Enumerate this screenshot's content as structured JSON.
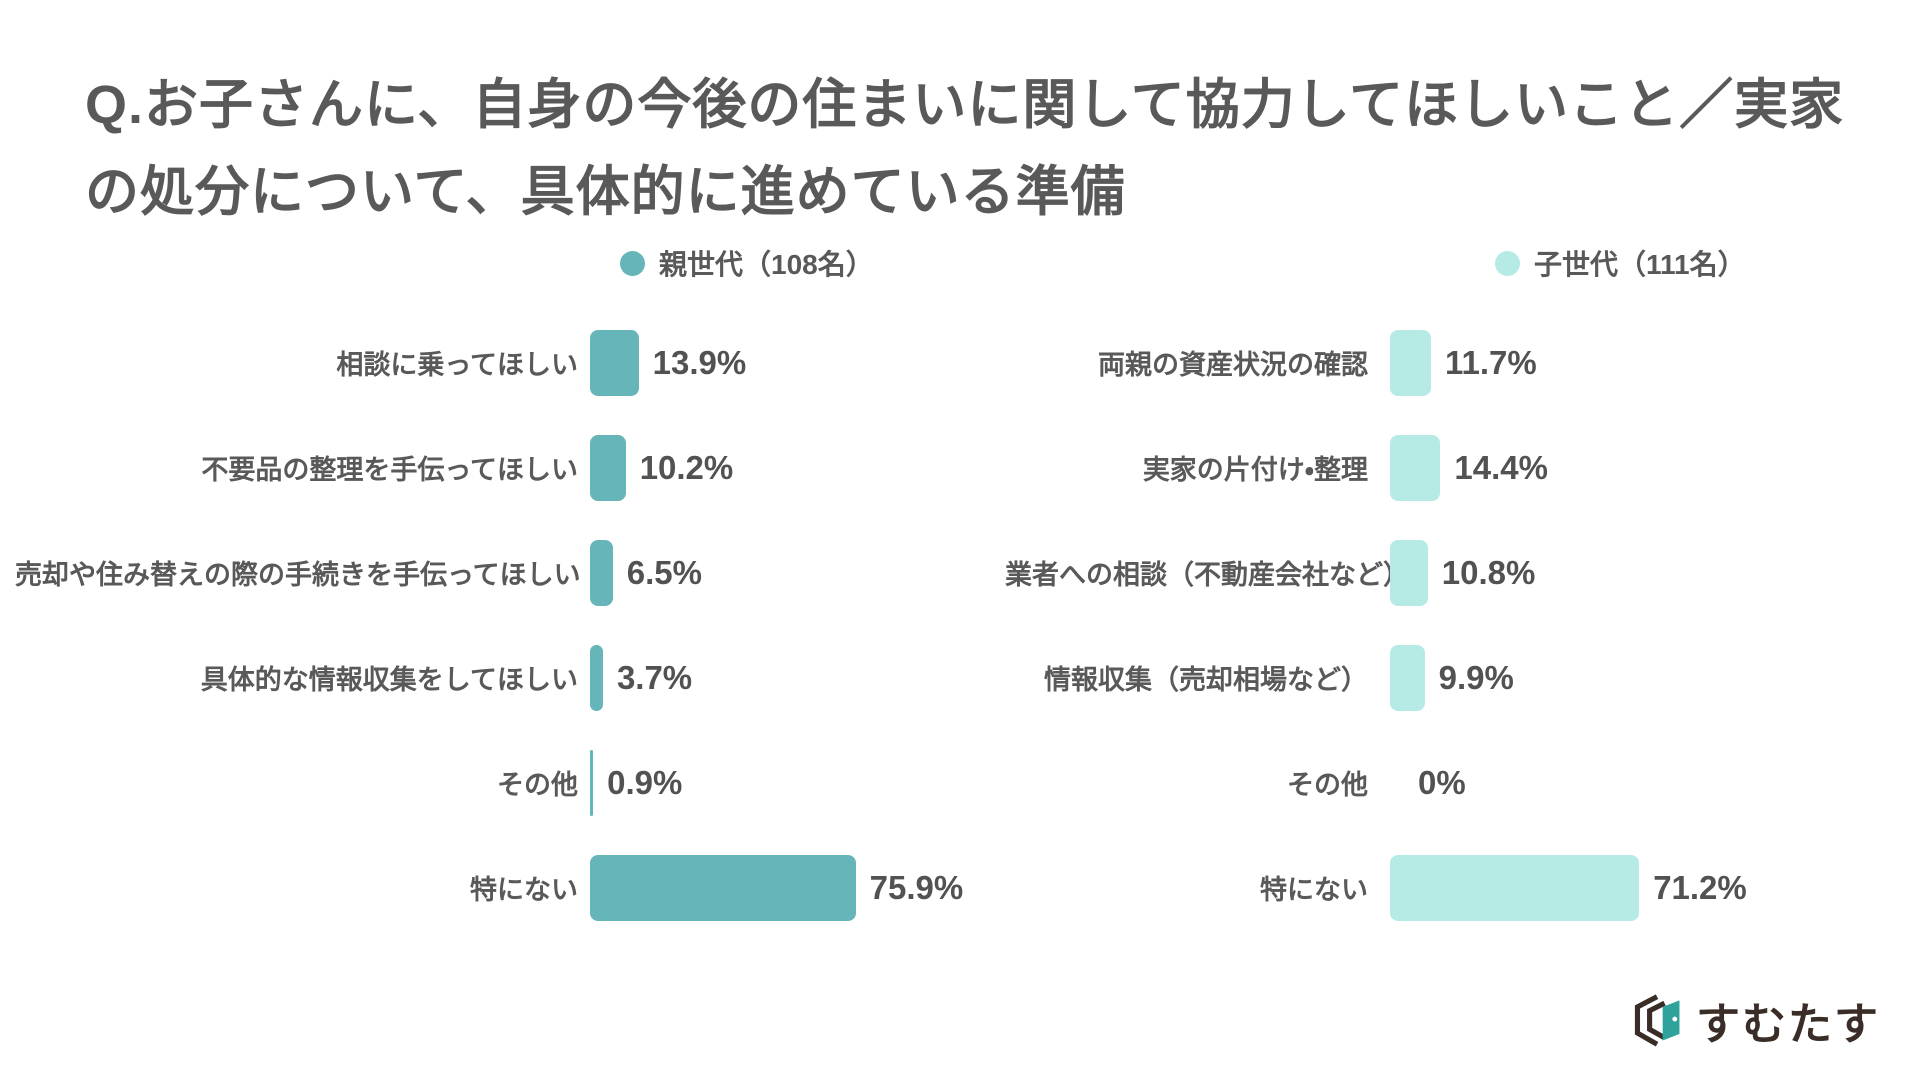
{
  "page": {
    "title_line1": "Q.お子さんに、自身の今後の住まいに関して協力してほしいこと／実家",
    "title_line2": "の処分について、具体的に進めている準備"
  },
  "colors": {
    "parent_series": "#66B5B8",
    "child_series": "#B5EBE4",
    "title_text": "#595959",
    "logo_dark": "#3A2D27",
    "logo_teal": "#2FA39B"
  },
  "logo": {
    "text": "すむたす"
  },
  "chart_data": [
    {
      "type": "bar",
      "orientation": "horizontal",
      "legend": "親世代（108名）",
      "unit": "%",
      "color_key": "parent_series",
      "axis_range": [
        0,
        80
      ],
      "grid": false,
      "categories": [
        "相談に乗ってほしい",
        "不要品の整理を手伝ってほしい",
        "売却や住み替えの際の手続きを手伝ってほしい",
        "具体的な情報収集をしてほしい",
        "その他",
        "特にない"
      ],
      "values": [
        13.9,
        10.2,
        6.5,
        3.7,
        0.9,
        75.9
      ],
      "value_labels": [
        "13.9%",
        "10.2%",
        "6.5%",
        "3.7%",
        "0.9%",
        "75.9%"
      ]
    },
    {
      "type": "bar",
      "orientation": "horizontal",
      "legend": "子世代（111名）",
      "unit": "%",
      "color_key": "child_series",
      "axis_range": [
        0,
        80
      ],
      "grid": false,
      "categories": [
        "両親の資産状況の確認",
        "実家の片付け・整理",
        "業者への相談（不動産会社など）",
        "情報収集（売却相場など）",
        "その他",
        "特にない"
      ],
      "values": [
        11.7,
        14.4,
        10.8,
        9.9,
        0,
        71.2
      ],
      "value_labels": [
        "11.7%",
        "14.4%",
        "10.8%",
        "9.9%",
        "0%",
        "71.2%"
      ]
    }
  ]
}
